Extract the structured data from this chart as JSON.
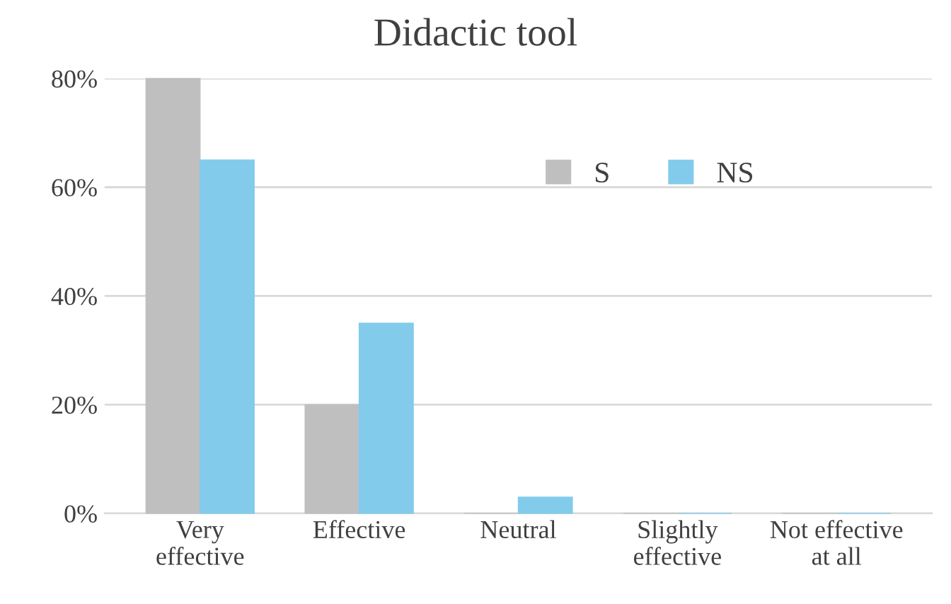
{
  "chart_data": {
    "type": "bar",
    "title": "Didactic tool",
    "categories": [
      "Very\neffective",
      "Effective",
      "Neutral",
      "Slightly\neffective",
      "Not effective\nat all"
    ],
    "series": [
      {
        "name": "S",
        "color": "#bfbfbf",
        "values": [
          80,
          20,
          0,
          0,
          0
        ]
      },
      {
        "name": "NS",
        "color": "#82cbeb",
        "values": [
          65,
          35,
          3,
          0,
          0
        ]
      }
    ],
    "ylim": [
      0,
      80
    ],
    "yticks": [
      {
        "value": 0,
        "label": "0%"
      },
      {
        "value": 20,
        "label": "20%"
      },
      {
        "value": 40,
        "label": "40%"
      },
      {
        "value": 60,
        "label": "60%"
      },
      {
        "value": 80,
        "label": "80%"
      }
    ],
    "grid": "y",
    "legend": "top right"
  }
}
